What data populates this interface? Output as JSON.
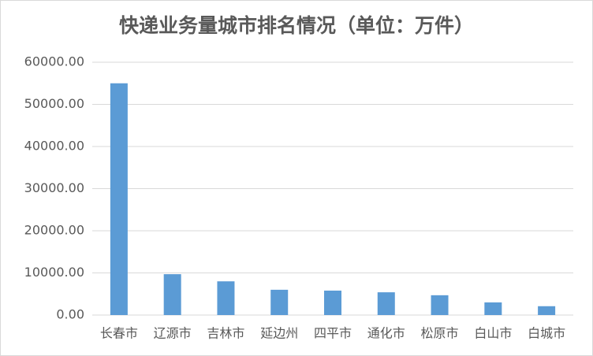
{
  "chart_data": {
    "type": "bar",
    "title": "快递业务量城市排名情况（单位：万件）",
    "categories": [
      "长春市",
      "辽源市",
      "吉林市",
      "延边州",
      "四平市",
      "通化市",
      "松原市",
      "白山市",
      "白城市"
    ],
    "values": [
      55000,
      9700,
      8000,
      6000,
      5800,
      5400,
      4700,
      3000,
      2100
    ],
    "color": "#5b9bd5",
    "ylim": [
      0,
      60000
    ],
    "yticks": [
      {
        "value": 0,
        "label": "0.00"
      },
      {
        "value": 10000,
        "label": "10000.00"
      },
      {
        "value": 20000,
        "label": "20000.00"
      },
      {
        "value": 30000,
        "label": "30000.00"
      },
      {
        "value": 40000,
        "label": "40000.00"
      },
      {
        "value": 50000,
        "label": "50000.00"
      },
      {
        "value": 60000,
        "label": "60000.00"
      }
    ],
    "grid": true
  }
}
